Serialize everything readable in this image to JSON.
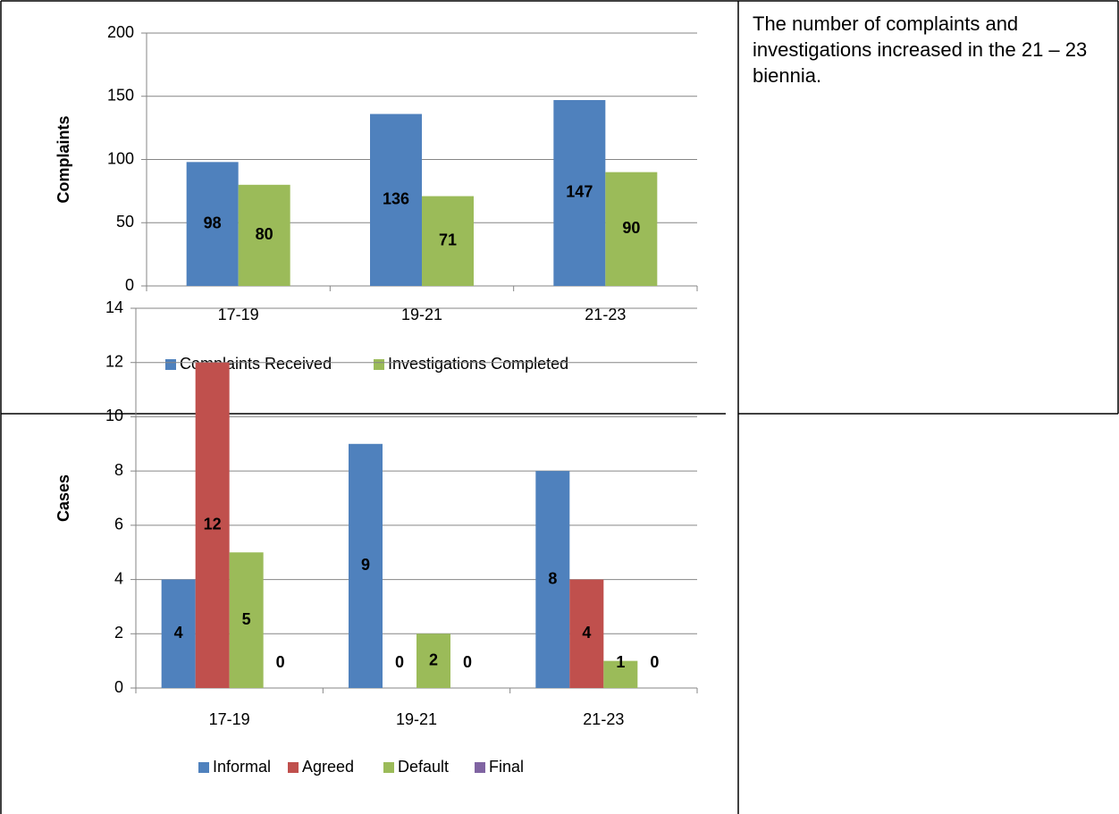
{
  "chart_data": [
    {
      "type": "bar",
      "ylabel": "Complaints",
      "categories": [
        "17-19",
        "19-21",
        "21-23"
      ],
      "series": [
        {
          "name": "Complaints Received",
          "color": "#4f81bd",
          "values": [
            98,
            136,
            147
          ]
        },
        {
          "name": "Investigations Completed",
          "color": "#9bbb59",
          "values": [
            80,
            71,
            90
          ]
        }
      ],
      "ylim": [
        0,
        200
      ],
      "yticks": [
        0,
        50,
        100,
        150,
        200
      ],
      "grid": true,
      "legend": "bottom"
    },
    {
      "type": "bar",
      "ylabel": "Cases",
      "categories": [
        "17-19",
        "19-21",
        "21-23"
      ],
      "series": [
        {
          "name": "Informal",
          "color": "#4f81bd",
          "values": [
            4,
            9,
            8
          ]
        },
        {
          "name": "Agreed",
          "color": "#c0504d",
          "values": [
            12,
            0,
            4
          ]
        },
        {
          "name": "Default",
          "color": "#9bbb59",
          "values": [
            5,
            2,
            1
          ]
        },
        {
          "name": "Final",
          "color": "#8064a2",
          "values": [
            0,
            0,
            0
          ]
        }
      ],
      "ylim": [
        0,
        14
      ],
      "yticks": [
        0,
        2,
        4,
        6,
        8,
        10,
        12,
        14
      ],
      "grid": true,
      "legend": "bottom"
    }
  ],
  "note": "The number of complaints and investigations increased in the 21 – 23 biennia."
}
